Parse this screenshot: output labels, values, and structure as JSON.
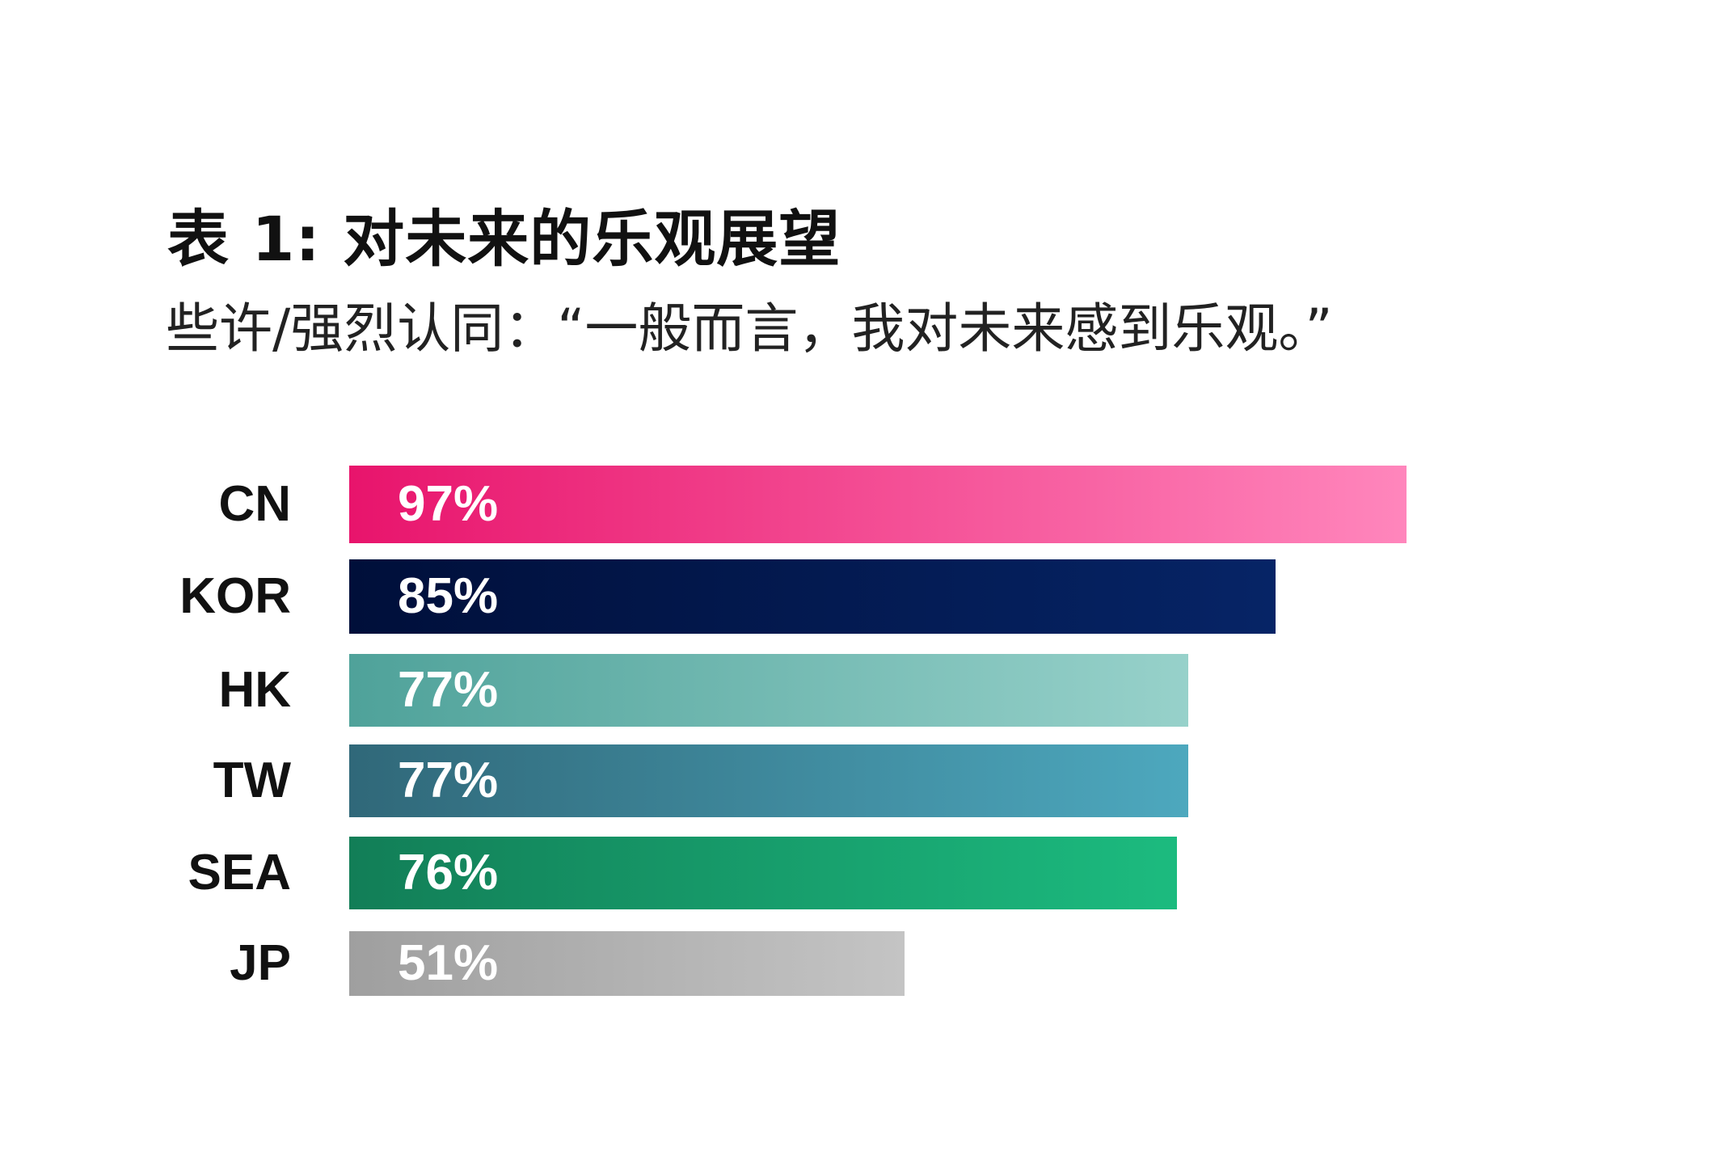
{
  "chart_data": {
    "type": "bar",
    "orientation": "horizontal",
    "title": "表 1: 对未来的乐观展望",
    "subtitle": "些许/强烈认同：“一般而言，我对未来感到乐观。”",
    "categories": [
      "CN",
      "KOR",
      "HK",
      "TW",
      "SEA",
      "JP"
    ],
    "values": [
      97,
      85,
      77,
      77,
      76,
      51
    ],
    "value_labels": [
      "97%",
      "85%",
      "77%",
      "77%",
      "76%",
      "51%"
    ],
    "xlim": [
      0,
      100
    ],
    "grid": false,
    "legend": "none",
    "bar_colors": [
      {
        "start": "#e8146c",
        "end": "#ff86bc"
      },
      {
        "start": "#000f3a",
        "end": "#062466"
      },
      {
        "start": "#4fa29a",
        "end": "#97d1ca"
      },
      {
        "start": "#306879",
        "end": "#4da8be"
      },
      {
        "start": "#127e57",
        "end": "#1cbb7f"
      },
      {
        "start": "#9f9f9f",
        "end": "#c4c4c4"
      }
    ]
  }
}
